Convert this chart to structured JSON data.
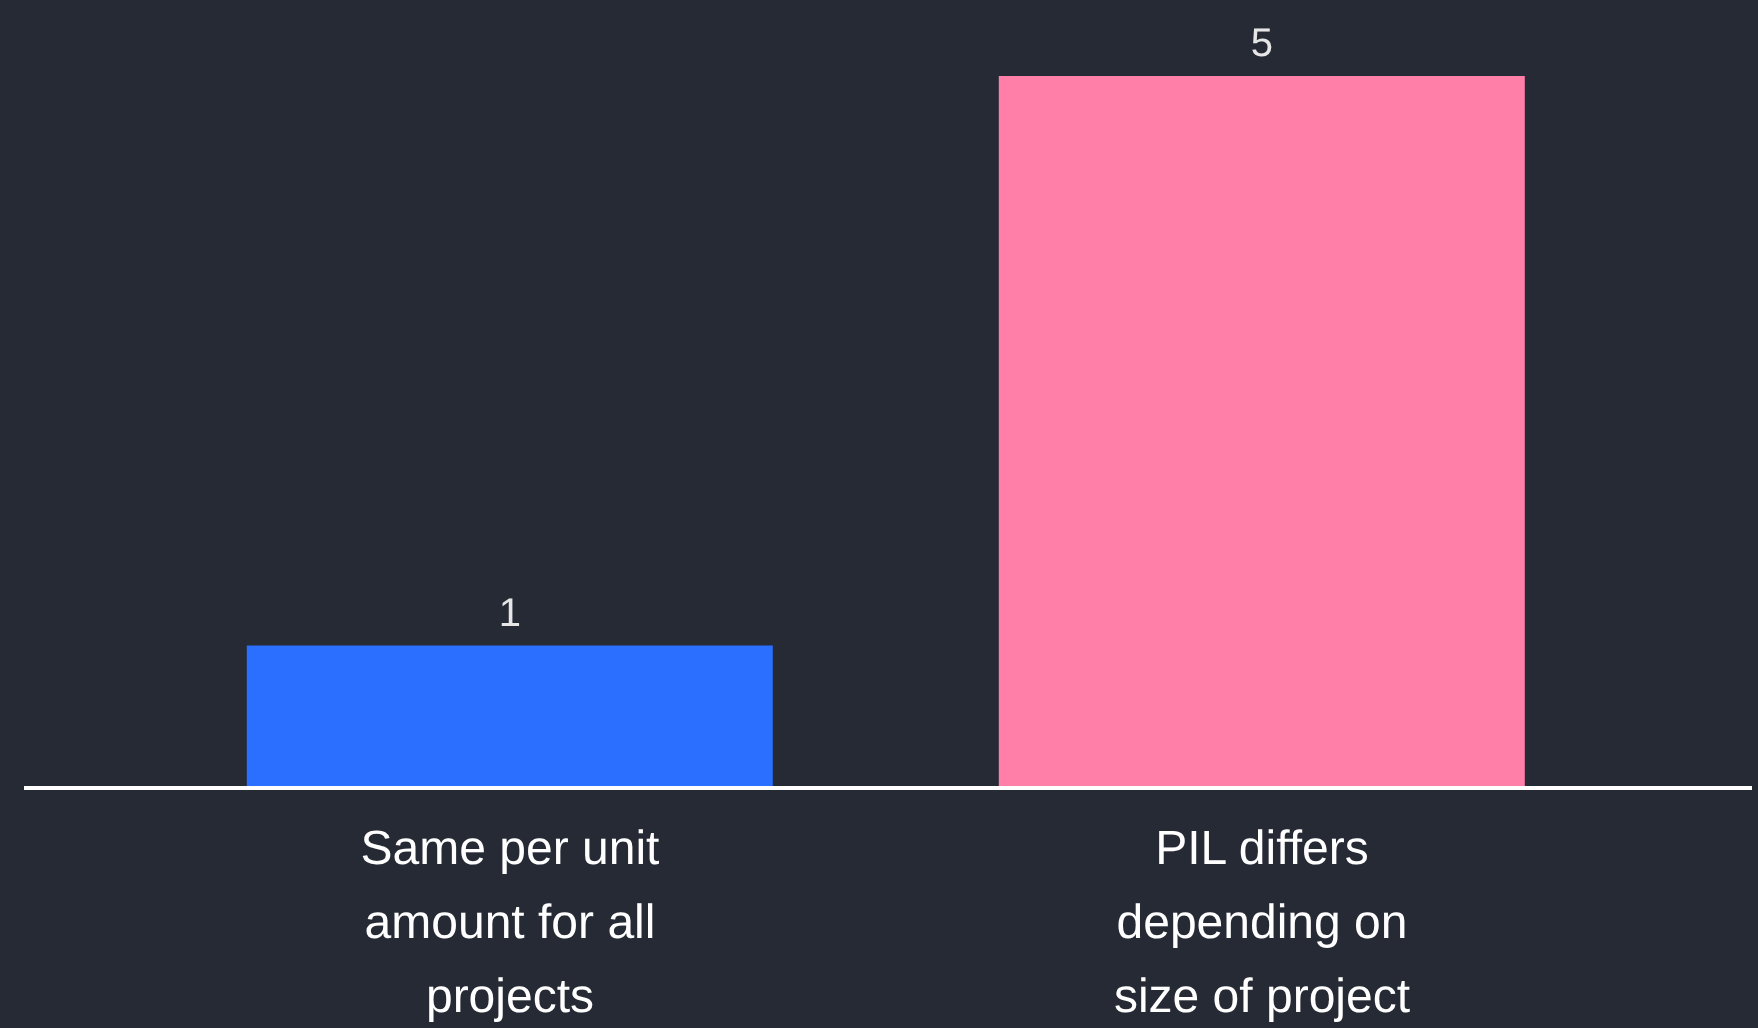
{
  "chart_data": {
    "type": "bar",
    "categories": [
      "Same per unit amount for all projects",
      "PIL differs depending on size of project"
    ],
    "values": [
      1,
      5
    ],
    "colors": [
      "#2a6fff",
      "#ff7fa8"
    ],
    "data_labels": true
  }
}
